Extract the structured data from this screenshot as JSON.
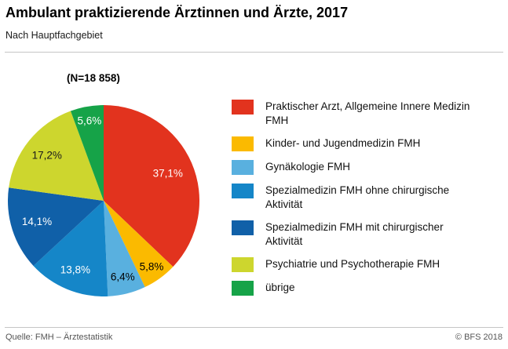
{
  "header": {
    "title": "Ambulant praktizierende Ärztinnen und Ärzte, 2017",
    "subtitle": "Nach Hauptfachgebiet"
  },
  "chart_data": {
    "type": "pie",
    "title": "Ambulant praktizierende Ärztinnen und Ärzte, 2017",
    "subtitle": "Nach Hauptfachgebiet",
    "n_label": "(N=18 858)",
    "unit": "%",
    "start_angle_deg": 0,
    "direction": "clockwise",
    "legend_position": "right",
    "slices": [
      {
        "label": "Praktischer Arzt, Allgemeine Innere Medizin FMH",
        "value": 37.1,
        "display": "37,1%",
        "color": "#e2331e",
        "label_color": "#ffffff",
        "label_radius": 0.73
      },
      {
        "label": "Kinder- und Jugendmedizin FMH",
        "value": 5.8,
        "display": "5,8%",
        "color": "#fbba00",
        "label_color": "#000000",
        "label_radius": 0.85
      },
      {
        "label": "Gynäkologie FMH",
        "value": 6.4,
        "display": "6,4%",
        "color": "#59b0df",
        "label_color": "#000000",
        "label_radius": 0.82
      },
      {
        "label": "Spezialmedizin FMH ohne chirurgische Aktivität",
        "value": 13.8,
        "display": "13,8%",
        "color": "#1586c8",
        "label_color": "#ffffff",
        "label_radius": 0.78
      },
      {
        "label": "Spezialmedizin FMH mit chirurgischer Aktivität",
        "value": 14.1,
        "display": "14,1%",
        "color": "#1060a8",
        "label_color": "#ffffff",
        "label_radius": 0.73
      },
      {
        "label": "Psychiatrie und Psychotherapie FMH",
        "value": 17.2,
        "display": "17,2%",
        "color": "#cdd62e",
        "label_color": "#1a1a1a",
        "label_radius": 0.76
      },
      {
        "label": "übrige",
        "value": 5.6,
        "display": "5,6%",
        "color": "#16a348",
        "label_color": "#ffffff",
        "label_radius": 0.85
      }
    ]
  },
  "footer": {
    "source": "Quelle: FMH – Ärztestatistik",
    "copyright": "© BFS 2018"
  }
}
